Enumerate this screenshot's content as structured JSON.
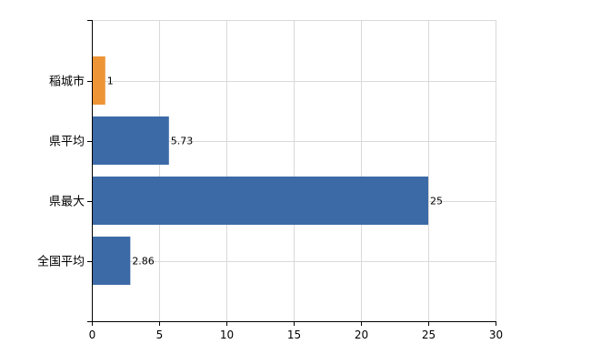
{
  "chart_data": {
    "type": "bar",
    "orientation": "horizontal",
    "categories": [
      "稲城市",
      "県平均",
      "県最大",
      "全国平均"
    ],
    "values": [
      1,
      5.73,
      25,
      2.86
    ],
    "data_labels": [
      "1",
      "5.73",
      "25",
      "2.86"
    ],
    "highlight_index": 0,
    "colors": {
      "highlight": "#ED9536",
      "default": "#3C6AA7",
      "grid": "#D9D9D9",
      "axis": "#000000"
    },
    "xlim": [
      0,
      30
    ],
    "x_ticks": [
      0,
      5,
      10,
      15,
      20,
      25,
      30
    ],
    "x_tick_labels": [
      "0",
      "5",
      "10",
      "15",
      "20",
      "25",
      "30"
    ],
    "grid": true,
    "title": "",
    "xlabel": "",
    "ylabel": ""
  }
}
